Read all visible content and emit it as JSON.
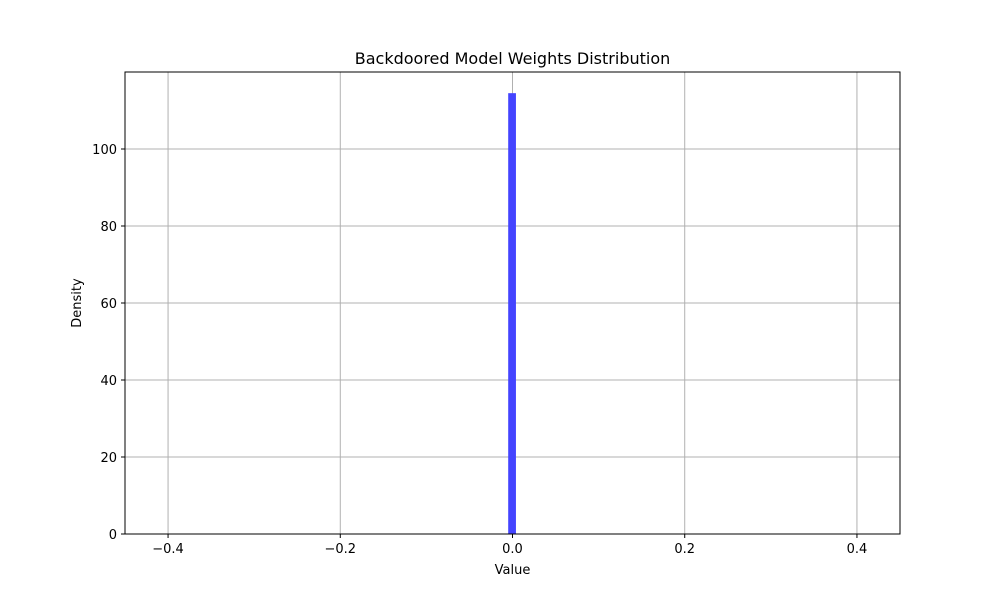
{
  "chart_data": {
    "type": "bar",
    "title": "Backdoored Model Weights Distribution",
    "xlabel": "Value",
    "ylabel": "Density",
    "xlim": [
      -0.45,
      0.45
    ],
    "ylim": [
      0,
      120
    ],
    "xticks": [
      -0.4,
      -0.2,
      0.0,
      0.2,
      0.4
    ],
    "xtick_labels": [
      "−0.4",
      "−0.2",
      "0.0",
      "0.2",
      "0.4"
    ],
    "yticks": [
      0,
      20,
      40,
      60,
      80,
      100
    ],
    "ytick_labels": [
      "0",
      "20",
      "40",
      "60",
      "80",
      "100"
    ],
    "grid": true,
    "bars": [
      {
        "x_start": -0.005,
        "x_end": 0.004,
        "value": 114.5
      }
    ],
    "bar_color": "#4444ff"
  }
}
